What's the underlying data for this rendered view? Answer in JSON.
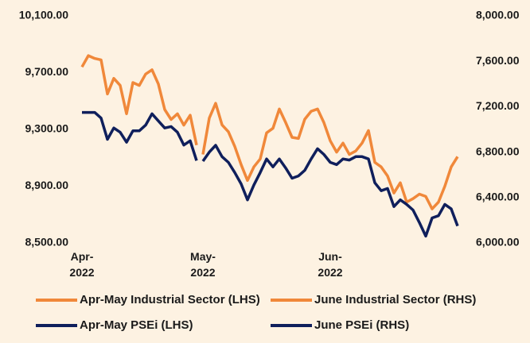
{
  "chart_data": {
    "type": "line",
    "categories": [
      "Apr-2022",
      null,
      null,
      null,
      null,
      null,
      null,
      null,
      null,
      null,
      null,
      null,
      null,
      null,
      null,
      null,
      null,
      null,
      null,
      "May-2022",
      null,
      null,
      null,
      null,
      null,
      null,
      null,
      null,
      null,
      null,
      null,
      null,
      null,
      null,
      null,
      null,
      null,
      null,
      null,
      "Jun-2022",
      null,
      null,
      null,
      null,
      null,
      null,
      null,
      null,
      null,
      null,
      null,
      null,
      null,
      null,
      null,
      null,
      null,
      null,
      null,
      null
    ],
    "ylim": [
      8500,
      10100
    ],
    "yticks": [
      {
        "value": 8500,
        "label": "8,500.00"
      },
      {
        "value": 8900,
        "label": "8,900.00"
      },
      {
        "value": 9300,
        "label": "9,300.00"
      },
      {
        "value": 9700,
        "label": "9,700.00"
      },
      {
        "value": 10100,
        "label": "10,100.00"
      }
    ],
    "y2lim": [
      6000,
      8000
    ],
    "y2ticks": [
      {
        "value": 6000,
        "label": "6,000.00"
      },
      {
        "value": 6400,
        "label": "6,400.00"
      },
      {
        "value": 6800,
        "label": "6,800.00"
      },
      {
        "value": 7200,
        "label": "7,200.00"
      },
      {
        "value": 7600,
        "label": "7,600.00"
      },
      {
        "value": 8000,
        "label": "8,000.00"
      }
    ],
    "grid": false,
    "series": [
      {
        "name": "Apr-May Industrial Sector (LHS)",
        "color": "#f0883a",
        "axis": "y",
        "values": [
          9740,
          9820,
          9800,
          9790,
          9550,
          9660,
          9610,
          9410,
          9630,
          9610,
          9690,
          9720,
          9620,
          9440,
          9370,
          9410,
          9330,
          9400,
          9190,
          null,
          null,
          null,
          null,
          null,
          null,
          null,
          null,
          null,
          null,
          null,
          null,
          null,
          null,
          null,
          null,
          null,
          null,
          null,
          null,
          null,
          null,
          null,
          null,
          null,
          null,
          null,
          null,
          null,
          null,
          null,
          null,
          null,
          null,
          null,
          null,
          null,
          null,
          null,
          null,
          null
        ]
      },
      {
        "name": "June Industrial Sector (RHS)",
        "color": "#f0883a",
        "axis": "y2",
        "values": [
          null,
          null,
          null,
          null,
          null,
          null,
          null,
          null,
          null,
          null,
          null,
          null,
          null,
          null,
          null,
          null,
          null,
          null,
          null,
          6780,
          7100,
          7230,
          7040,
          6980,
          6850,
          6690,
          6550,
          6670,
          6740,
          6970,
          7010,
          7180,
          7060,
          6930,
          6920,
          7090,
          7160,
          7180,
          7060,
          6900,
          6800,
          6880,
          6780,
          6810,
          6880,
          6990,
          6710,
          6670,
          6590,
          6440,
          6530,
          6360,
          6390,
          6430,
          6410,
          6300,
          6360,
          6500,
          6670,
          6760
        ]
      },
      {
        "name": "Apr-May PSEi (LHS)",
        "color": "#0f1f5c",
        "axis": "y",
        "values": [
          9420,
          9420,
          9420,
          9380,
          9230,
          9310,
          9280,
          9210,
          9290,
          9290,
          9330,
          9410,
          9360,
          9310,
          9320,
          9280,
          9190,
          9220,
          9080,
          null,
          null,
          null,
          null,
          null,
          null,
          null,
          null,
          null,
          null,
          null,
          null,
          null,
          null,
          null,
          null,
          null,
          null,
          null,
          null,
          null,
          null,
          null,
          null,
          null,
          null,
          null,
          null,
          null,
          null,
          null,
          null,
          null,
          null,
          null,
          null,
          null,
          null,
          null,
          null,
          null
        ]
      },
      {
        "name": "June PSEi (RHS)",
        "color": "#0f1f5c",
        "axis": "y2",
        "values": [
          null,
          null,
          null,
          null,
          null,
          null,
          null,
          null,
          null,
          null,
          null,
          null,
          null,
          null,
          null,
          null,
          null,
          null,
          null,
          6720,
          6800,
          6860,
          6760,
          6710,
          6620,
          6520,
          6380,
          6510,
          6620,
          6740,
          6670,
          6740,
          6660,
          6570,
          6590,
          6640,
          6740,
          6830,
          6780,
          6710,
          6690,
          6740,
          6730,
          6760,
          6760,
          6740,
          6530,
          6460,
          6480,
          6320,
          6380,
          6340,
          6290,
          6180,
          6060,
          6220,
          6240,
          6340,
          6300,
          6150
        ]
      }
    ]
  }
}
